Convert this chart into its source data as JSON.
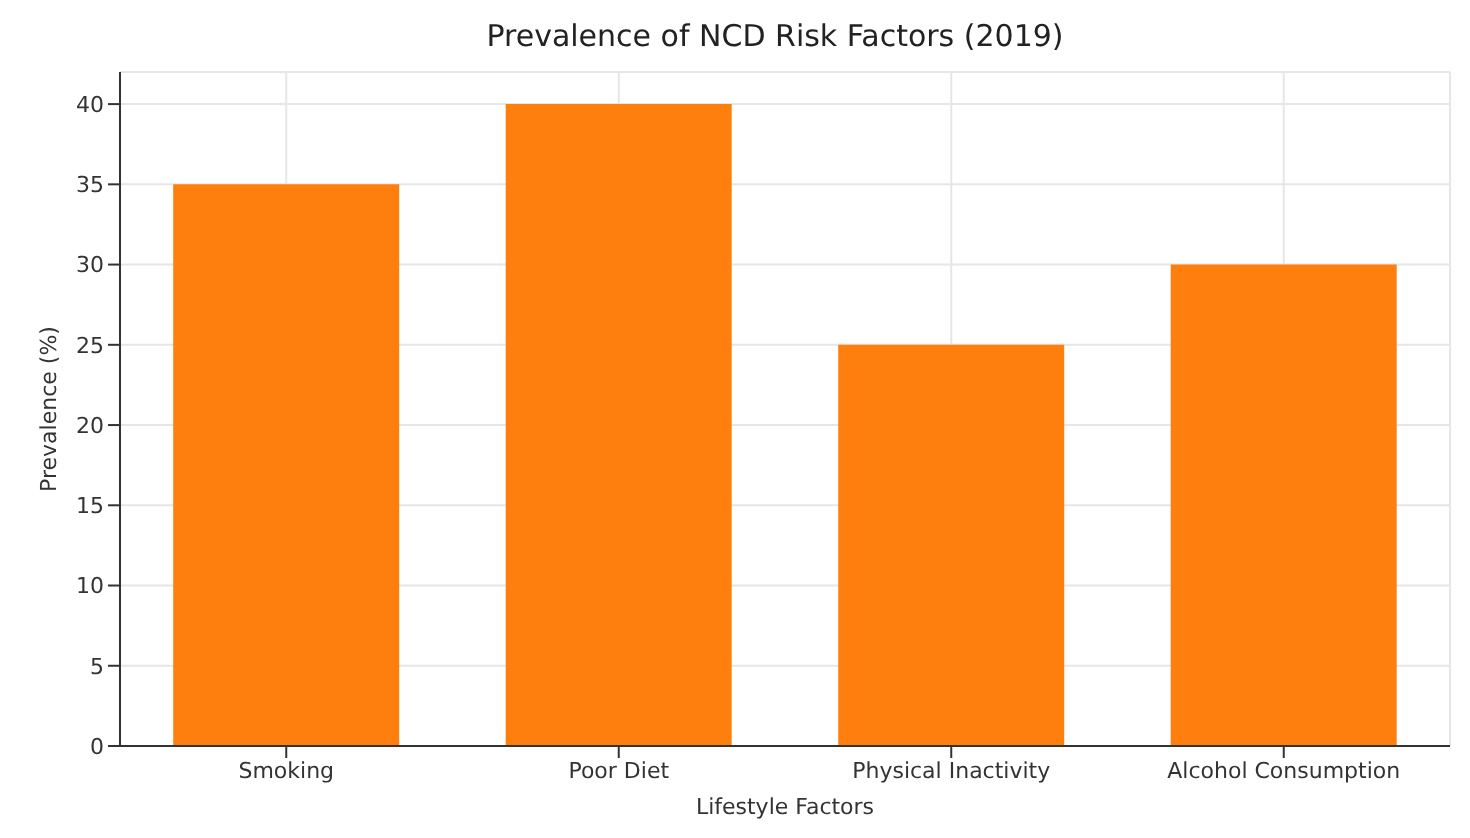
{
  "chart_data": {
    "type": "bar",
    "title": "Prevalence of NCD Risk Factors (2019)",
    "xlabel": "Lifestyle Factors",
    "ylabel": "Prevalence (%)",
    "categories": [
      "Smoking",
      "Poor Diet",
      "Physical Inactivity",
      "Alcohol Consumption"
    ],
    "values": [
      35,
      40,
      25,
      30
    ],
    "color": "#ff7f0e",
    "ylim": [
      0,
      42
    ],
    "yticks": [
      0,
      5,
      10,
      15,
      20,
      25,
      30,
      35,
      40
    ],
    "grid": true
  }
}
